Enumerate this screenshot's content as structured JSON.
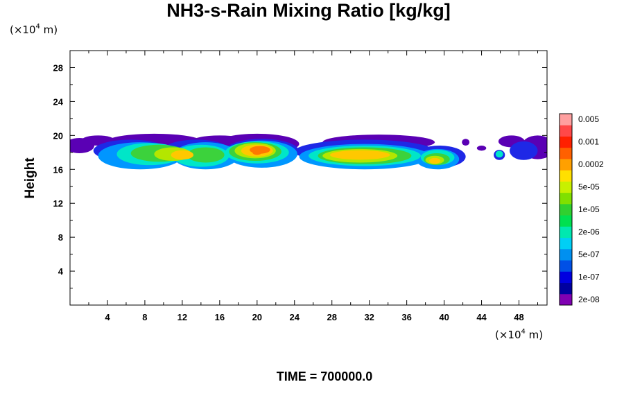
{
  "chart_data": {
    "type": "heatmap",
    "title": "NH3-s-Rain Mixing Ratio [kg/kg]",
    "ylabel": "Height",
    "xlabel": "",
    "x_unit_prefix": "(×10",
    "x_unit_exp": "4",
    "x_unit_suffix": " m)",
    "y_unit_prefix": "(×10",
    "y_unit_exp": "4",
    "y_unit_suffix": " m)",
    "time_label": "TIME = 700000.0",
    "xlim": [
      0,
      51
    ],
    "ylim": [
      0,
      30
    ],
    "x_ticks": [
      4,
      8,
      12,
      16,
      20,
      24,
      28,
      32,
      36,
      40,
      44,
      48
    ],
    "y_ticks": [
      4,
      8,
      12,
      16,
      20,
      24,
      28
    ],
    "colorbar": {
      "colors": [
        "#7f00b2",
        "#0000a0",
        "#0000e0",
        "#0050e6",
        "#0090f0",
        "#00cff5",
        "#00e8b0",
        "#00e050",
        "#30d030",
        "#80e000",
        "#c8f000",
        "#ffe000",
        "#ffa000",
        "#ff6000",
        "#ff2000",
        "#ff4848",
        "#ffa0a0"
      ],
      "labels": [
        "2e-08",
        "1e-07",
        "5e-07",
        "2e-06",
        "1e-05",
        "5e-05",
        "0.0002",
        "0.001",
        "0.005"
      ]
    },
    "contour_layers": [
      {
        "level": 1,
        "color": "#5a00b4",
        "blobs": [
          [
            1,
            18.8,
            1.6,
            0.9
          ],
          [
            3,
            19.4,
            1.8,
            0.6
          ],
          [
            9,
            19.3,
            5.0,
            0.9
          ],
          [
            16,
            19.3,
            3.0,
            0.7
          ],
          [
            20,
            19.0,
            4.5,
            1.2
          ],
          [
            33,
            19.2,
            6.0,
            0.9
          ],
          [
            42.3,
            19.2,
            0.4,
            0.4
          ],
          [
            44.0,
            18.5,
            0.5,
            0.3
          ],
          [
            47.2,
            19.3,
            1.4,
            0.7
          ],
          [
            50,
            18.6,
            1.8,
            1.4
          ]
        ]
      },
      {
        "level": 2,
        "color": "#1e28e6",
        "blobs": [
          [
            6.5,
            18.2,
            4.0,
            1.3
          ],
          [
            13.5,
            18.3,
            3.5,
            1.2
          ],
          [
            20.5,
            18.1,
            4.0,
            1.5
          ],
          [
            31.5,
            18.1,
            7.5,
            1.4
          ],
          [
            39.5,
            17.5,
            2.8,
            1.3
          ],
          [
            48.5,
            18.2,
            1.5,
            1.1
          ],
          [
            45.9,
            17.7,
            0.6,
            0.6
          ]
        ]
      },
      {
        "level": 3,
        "color": "#0096ff",
        "blobs": [
          [
            7.5,
            17.6,
            4.5,
            1.6
          ],
          [
            14.5,
            17.6,
            3.5,
            1.6
          ],
          [
            20.5,
            17.8,
            3.8,
            1.6
          ],
          [
            31.5,
            17.5,
            7.0,
            1.5
          ],
          [
            39.3,
            17.2,
            2.3,
            1.2
          ]
        ]
      },
      {
        "level": 4,
        "color": "#00e6c8",
        "blobs": [
          [
            8.5,
            17.8,
            3.5,
            1.3
          ],
          [
            14.0,
            17.6,
            3.0,
            1.3
          ],
          [
            20.0,
            18.0,
            3.4,
            1.3
          ],
          [
            31.5,
            17.6,
            6.0,
            1.2
          ],
          [
            39.3,
            17.4,
            1.8,
            0.9
          ],
          [
            45.9,
            17.8,
            0.4,
            0.4
          ]
        ]
      },
      {
        "level": 5,
        "color": "#3cd23c",
        "blobs": [
          [
            9.5,
            17.9,
            3.0,
            1.0
          ],
          [
            14.5,
            17.7,
            2.0,
            0.9
          ],
          [
            19.8,
            18.1,
            2.8,
            1.1
          ],
          [
            31.5,
            17.6,
            5.0,
            1.0
          ],
          [
            39.2,
            17.2,
            1.4,
            0.7
          ]
        ]
      },
      {
        "level": 6,
        "color": "#b4e600",
        "blobs": [
          [
            11.0,
            17.8,
            2.0,
            0.8
          ],
          [
            19.8,
            18.2,
            2.2,
            0.9
          ],
          [
            31.0,
            17.6,
            4.0,
            0.8
          ],
          [
            39.0,
            17.1,
            1.0,
            0.5
          ]
        ]
      },
      {
        "level": 7,
        "color": "#ffc800",
        "blobs": [
          [
            12.0,
            17.7,
            1.2,
            0.55
          ],
          [
            20.0,
            18.2,
            1.7,
            0.7
          ],
          [
            31.0,
            17.7,
            3.2,
            0.55
          ],
          [
            39.0,
            17.0,
            0.6,
            0.35
          ]
        ]
      },
      {
        "level": 8,
        "color": "#ff7800",
        "blobs": [
          [
            20.3,
            18.3,
            1.1,
            0.45
          ],
          [
            20.0,
            18.0,
            0.5,
            0.3
          ]
        ]
      }
    ]
  }
}
